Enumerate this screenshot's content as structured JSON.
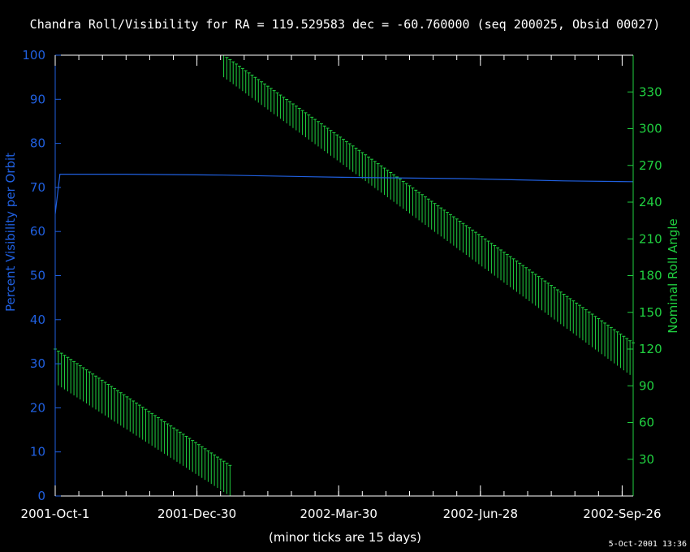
{
  "chart_data": {
    "type": "line",
    "title": "Chandra Roll/Visibility for RA = 119.529583 dec = -60.760000 (seq 200025, Obsid 00027)",
    "xlabel": "(minor ticks are 15 days)",
    "ylabel_left": "Percent Visibility per Orbit",
    "ylabel_right": "Nominal Roll Angle",
    "timestamp": "5-Oct-2001 13:36",
    "x_axis": {
      "range": [
        "2001-10-01",
        "2002-10-03"
      ],
      "major_ticks": [
        "2001-Oct-1",
        "2001-Dec-30",
        "2002-Mar-30",
        "2002-Jun-28",
        "2002-Sep-26"
      ],
      "minor_tick_days": 15
    },
    "y_left": {
      "range": [
        0,
        100
      ],
      "ticks": [
        "0",
        "10",
        "20",
        "30",
        "40",
        "50",
        "60",
        "70",
        "80",
        "90",
        "100"
      ]
    },
    "y_right": {
      "range": [
        0,
        360
      ],
      "ticks": [
        "30",
        "60",
        "90",
        "120",
        "150",
        "180",
        "210",
        "240",
        "270",
        "300",
        "330"
      ]
    },
    "colors": {
      "visibility": "#2060e0",
      "roll": "#20d040",
      "frame": "#ffffff",
      "text": "#ffffff"
    },
    "series": [
      {
        "name": "Percent Visibility per Orbit",
        "axis": "left",
        "x": [
          "2001-10-01",
          "2001-10-04",
          "2001-11-15",
          "2002-01-15",
          "2002-04-01",
          "2002-06-15",
          "2002-08-20",
          "2002-10-03"
        ],
        "values": [
          64,
          73,
          73,
          72.8,
          72.3,
          72,
          71.5,
          71.3
        ]
      },
      {
        "name": "Nominal Roll Angle",
        "axis": "right",
        "style": "range-bars",
        "segments": [
          {
            "x": [
              "2001-10-01",
              "2002-01-20"
            ],
            "low": [
              92,
              0
            ],
            "high": [
              120,
              25
            ]
          },
          {
            "x": [
              "2002-01-16",
              "2002-10-03"
            ],
            "low": [
              342,
              97
            ],
            "high": [
              360,
              125
            ]
          }
        ]
      }
    ]
  }
}
